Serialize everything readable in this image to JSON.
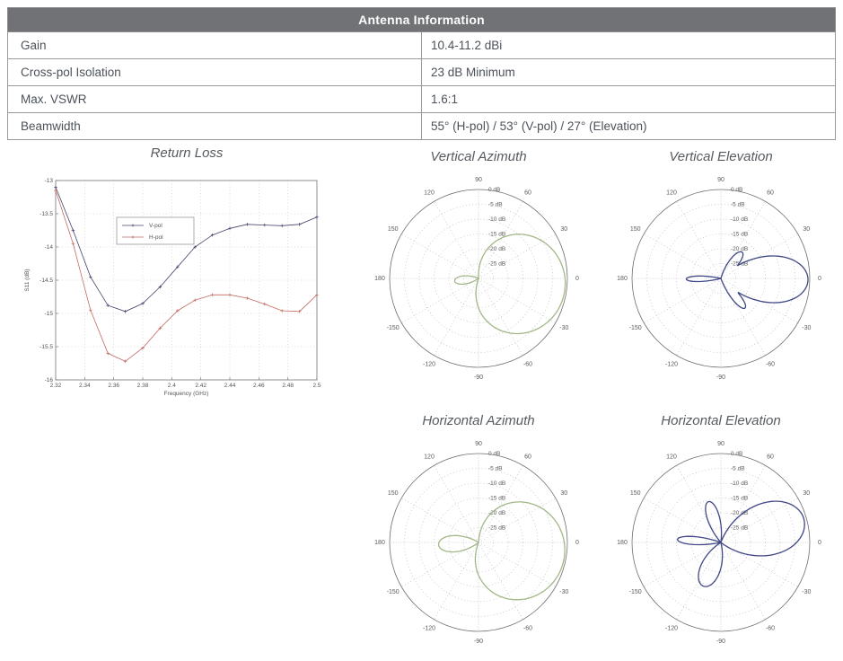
{
  "table": {
    "title": "Antenna Information",
    "header_bg": "#707275",
    "border_color": "#9a9a9a",
    "rows": [
      {
        "label": "Gain",
        "value": "10.4-11.2 dBi"
      },
      {
        "label": "Cross-pol Isolation",
        "value": "23 dB Minimum"
      },
      {
        "label": "Max. VSWR",
        "value": "1.6:1"
      },
      {
        "label": "Beamwidth",
        "value": "55° (H-pol) / 53° (V-pol) / 27° (Elevation)"
      }
    ]
  },
  "chart_data": [
    {
      "type": "line",
      "title": "Return Loss",
      "xlabel": "Frequency (GHz)",
      "ylabel": "S11 (dB)",
      "xlim": [
        2.32,
        2.5
      ],
      "ylim": [
        -16,
        -13
      ],
      "grid": true,
      "legend_position": "upper-left-inside",
      "xticks": [
        2.32,
        2.34,
        2.36,
        2.38,
        2.4,
        2.42,
        2.44,
        2.46,
        2.48,
        2.5
      ],
      "xtick_labels": [
        "2.32",
        "2.34",
        "2.36",
        "2.38",
        "2.4",
        "2.42",
        "2.44",
        "2.46",
        "2.48",
        "2.5"
      ],
      "yticks": [
        -13,
        -13.5,
        -14,
        -14.5,
        -15,
        -15.5,
        -16
      ],
      "ytick_labels": [
        "-13",
        "-13.5",
        "-14",
        "-14.5",
        "-15",
        "-15.5",
        "-16"
      ],
      "x": [
        2.32,
        2.332,
        2.344,
        2.356,
        2.368,
        2.38,
        2.392,
        2.404,
        2.416,
        2.428,
        2.44,
        2.452,
        2.464,
        2.476,
        2.488,
        2.5
      ],
      "series": [
        {
          "name": "V-pol",
          "color": "#45456e",
          "values": [
            -13.1,
            -13.75,
            -14.45,
            -14.88,
            -14.97,
            -14.85,
            -14.6,
            -14.3,
            -14.0,
            -13.82,
            -13.72,
            -13.66,
            -13.67,
            -13.68,
            -13.66,
            -13.55
          ]
        },
        {
          "name": "H-pol",
          "color": "#c16a62",
          "values": [
            -13.15,
            -13.95,
            -14.95,
            -15.6,
            -15.72,
            -15.52,
            -15.22,
            -14.96,
            -14.8,
            -14.72,
            -14.72,
            -14.77,
            -14.86,
            -14.96,
            -14.97,
            -14.72
          ]
        }
      ]
    },
    {
      "type": "polar",
      "title": "Vertical Azimuth",
      "color": "#a2b788",
      "r_min_db": -30,
      "r_tick_labels": [
        "0 dB",
        "-5 dB",
        "-10 dB",
        "-15 dB",
        "-20 dB",
        "-25 dB"
      ],
      "angle_ticks": [
        0,
        30,
        60,
        90,
        120,
        150,
        180,
        -150,
        -120,
        -90,
        -60,
        -30
      ],
      "lobes": [
        {
          "dir_deg": -8,
          "peak_db": -0.6,
          "halfwidth_deg": 100,
          "shape": 0.85
        },
        {
          "dir_deg": 186,
          "peak_db": -21.9,
          "halfwidth_deg": 30,
          "shape": 1.2
        }
      ]
    },
    {
      "type": "polar",
      "title": "Vertical Elevation",
      "color": "#3f4785",
      "r_min_db": -30,
      "r_tick_labels": [
        "0 dB",
        "-5 dB",
        "-10 dB",
        "-15 dB",
        "-20 dB",
        "-25 dB"
      ],
      "angle_ticks": [
        0,
        30,
        60,
        90,
        120,
        150,
        180,
        -150,
        -120,
        -90,
        -60,
        -30
      ],
      "lobes": [
        {
          "dir_deg": -1,
          "peak_db": -0.6,
          "halfwidth_deg": 48,
          "shape": 1.2
        },
        {
          "dir_deg": 51,
          "peak_db": -18.6,
          "halfwidth_deg": 24,
          "shape": 1.2
        },
        {
          "dir_deg": -51,
          "peak_db": -17.1,
          "halfwidth_deg": 20,
          "shape": 1.3
        },
        {
          "dir_deg": 181,
          "peak_db": -18.3,
          "halfwidth_deg": 14,
          "shape": 1.2
        }
      ]
    },
    {
      "type": "polar",
      "title": "Horizontal Azimuth",
      "color": "#a2b788",
      "r_min_db": -30,
      "r_tick_labels": [
        "0 dB",
        "-5 dB",
        "-10 dB",
        "-15 dB",
        "-20 dB",
        "-25 dB"
      ],
      "angle_ticks": [
        0,
        30,
        60,
        90,
        120,
        150,
        180,
        -150,
        -120,
        -90,
        -60,
        -30
      ],
      "lobes": [
        {
          "dir_deg": -12,
          "peak_db": -0.6,
          "halfwidth_deg": 98,
          "shape": 0.85
        },
        {
          "dir_deg": 183,
          "peak_db": -16.5,
          "halfwidth_deg": 36,
          "shape": 1.2
        }
      ]
    },
    {
      "type": "polar",
      "title": "Horizontal Elevation",
      "color": "#3f4785",
      "r_min_db": -30,
      "r_tick_labels": [
        "0 dB",
        "-5 dB",
        "-10 dB",
        "-15 dB",
        "-20 dB",
        "-25 dB"
      ],
      "angle_ticks": [
        0,
        30,
        60,
        90,
        120,
        150,
        180,
        -150,
        -120,
        -90,
        -60,
        -30
      ],
      "lobes": [
        {
          "dir_deg": 16,
          "peak_db": -0.9,
          "halfwidth_deg": 55,
          "shape": 1.2
        },
        {
          "dir_deg": 107,
          "peak_db": -15.6,
          "halfwidth_deg": 25,
          "shape": 1.2
        },
        {
          "dir_deg": 176,
          "peak_db": -15.3,
          "halfwidth_deg": 16,
          "shape": 1.2
        },
        {
          "dir_deg": -112,
          "peak_db": -14.1,
          "halfwidth_deg": 36,
          "shape": 1.1
        }
      ]
    }
  ]
}
